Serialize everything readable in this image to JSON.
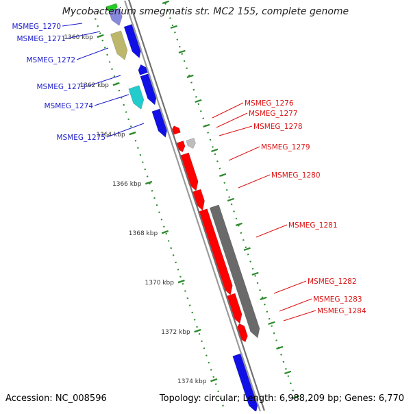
{
  "title": "Mycobacterium smegmatis str. MC2 155, complete genome",
  "footer": {
    "accession": "Accession: NC_008596",
    "topology": "Topology: circular; Length: 6,988,209 bp; Genes: 6,770"
  },
  "colors": {
    "backbone": "#8c8c8c",
    "tick": "#2d8a2d",
    "label_left": "#1a1acc",
    "label_right": "#dd1111",
    "gene_blue": "#1010e6",
    "gene_olive": "#bdb76b",
    "gene_cyan": "#22cccc",
    "gene_red": "#ff0000",
    "gene_gray": "#6a6a6a",
    "gene_lightgray": "#bdbdbd",
    "gene_green": "#22cc22"
  },
  "ruler": {
    "ticks": [
      {
        "label": "1360 kbp"
      },
      {
        "label": "1362 kbp"
      },
      {
        "label": "1364 kbp"
      },
      {
        "label": "1366 kbp"
      },
      {
        "label": "1368 kbp"
      },
      {
        "label": "1370 kbp"
      },
      {
        "label": "1372 kbp"
      },
      {
        "label": "1374 kbp"
      }
    ]
  },
  "genes_left": [
    {
      "name": "MSMEG_1270"
    },
    {
      "name": "MSMEG_1271"
    },
    {
      "name": "MSMEG_1272"
    },
    {
      "name": "MSMEG_1273"
    },
    {
      "name": "MSMEG_1274"
    },
    {
      "name": "MSMEG_1275"
    }
  ],
  "genes_right": [
    {
      "name": "MSMEG_1276"
    },
    {
      "name": "MSMEG_1277"
    },
    {
      "name": "MSMEG_1278"
    },
    {
      "name": "MSMEG_1279"
    },
    {
      "name": "MSMEG_1280"
    },
    {
      "name": "MSMEG_1281"
    },
    {
      "name": "MSMEG_1282"
    },
    {
      "name": "MSMEG_1283"
    },
    {
      "name": "MSMEG_1284"
    }
  ]
}
